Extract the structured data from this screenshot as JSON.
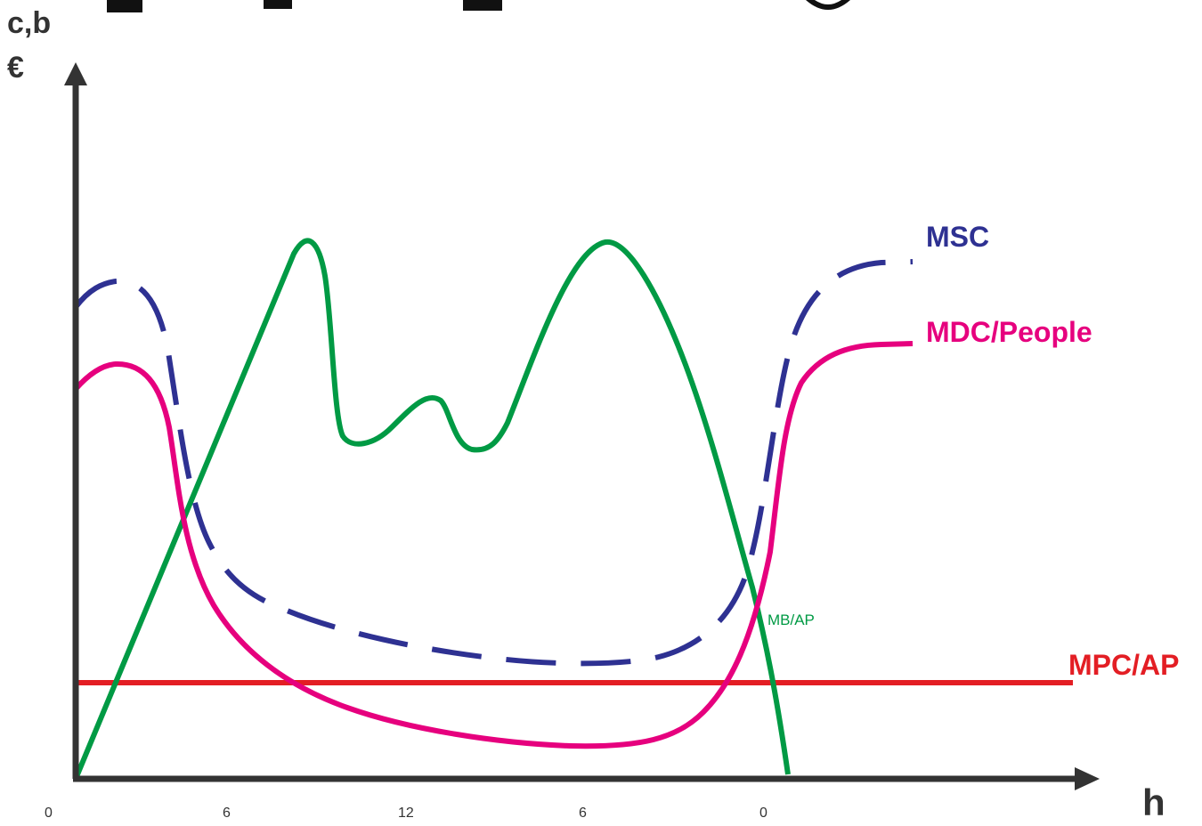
{
  "y_axis": {
    "label_line1": "c,b",
    "label_line2": "€"
  },
  "x_axis": {
    "label": "h",
    "ticks": [
      "0",
      "6",
      "12",
      "6",
      "0"
    ]
  },
  "curves": {
    "msc": {
      "label": "MSC",
      "color": "#2e3192"
    },
    "mdc": {
      "label": "MDC/People",
      "color": "#e6007e"
    },
    "mpc": {
      "label": "MPC/AP",
      "color": "#e31e24"
    },
    "mb": {
      "label": "MB/AP",
      "color": "#009a44"
    }
  },
  "axis_color": "#333333"
}
